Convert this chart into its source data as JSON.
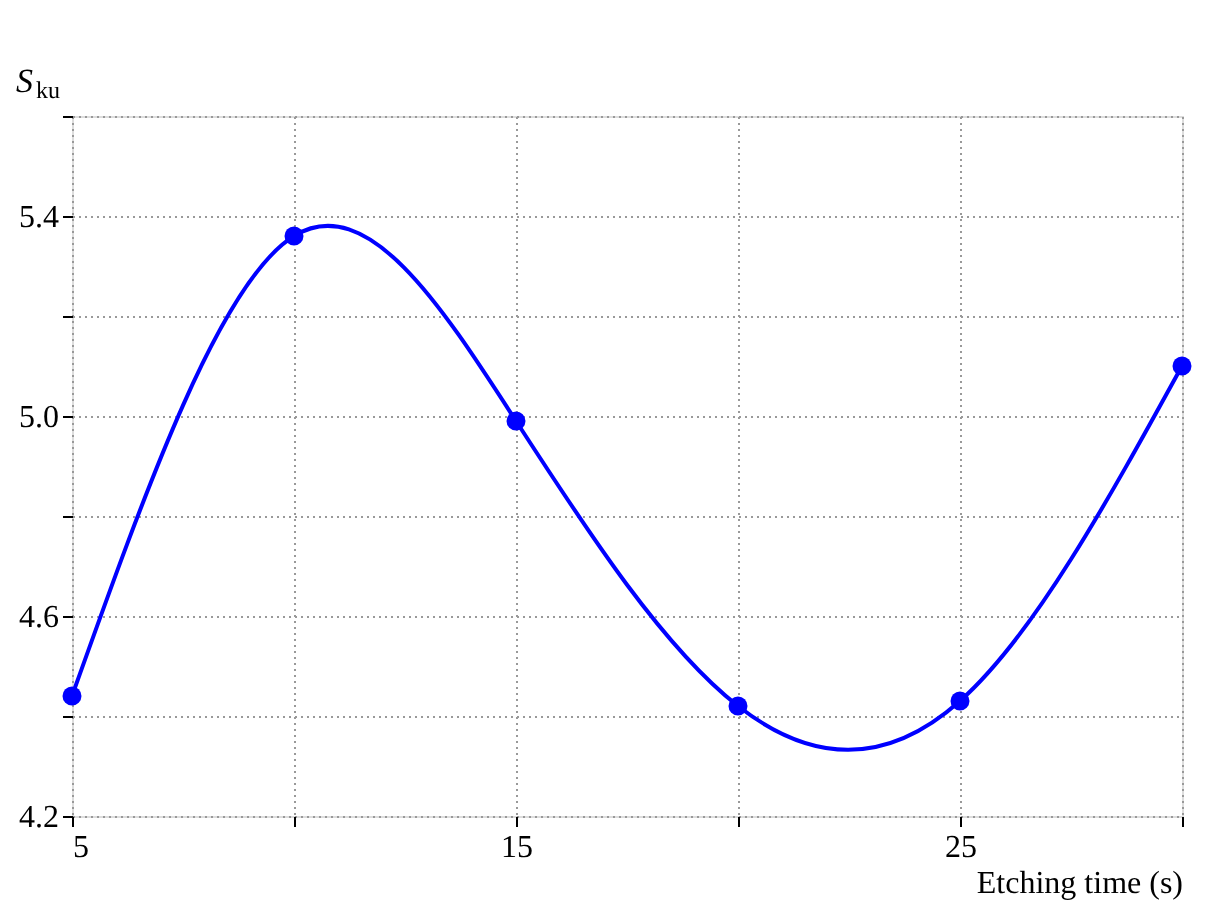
{
  "chart_data": {
    "type": "line",
    "xlabel": "Etching time (s)",
    "ylabel": "S$_{ku}$",
    "x": [
      5,
      10,
      15,
      20,
      25,
      30
    ],
    "series": [
      {
        "color": "#0000ff",
        "values": [
          4.44,
          5.36,
          4.99,
          4.42,
          4.43,
          5.1
        ]
      }
    ],
    "marker": "circle",
    "line_style": "solid",
    "xlim": [
      5,
      30
    ],
    "xticks": [
      5,
      {
        "value": 10,
        "label": null
      },
      15,
      {
        "value": 20,
        "label": null
      },
      25,
      {
        "value": 30,
        "label": null
      }
    ],
    "ylim": [
      4.2,
      5.6
    ],
    "yticks": [
      4.2,
      {
        "value": 4.4,
        "label": null
      },
      4.6,
      {
        "value": 4.8,
        "label": null
      },
      "5.0",
      {
        "value": 5.2,
        "label": null
      },
      5.4,
      {
        "value": 5.6,
        "label": null
      }
    ],
    "grid": true
  }
}
